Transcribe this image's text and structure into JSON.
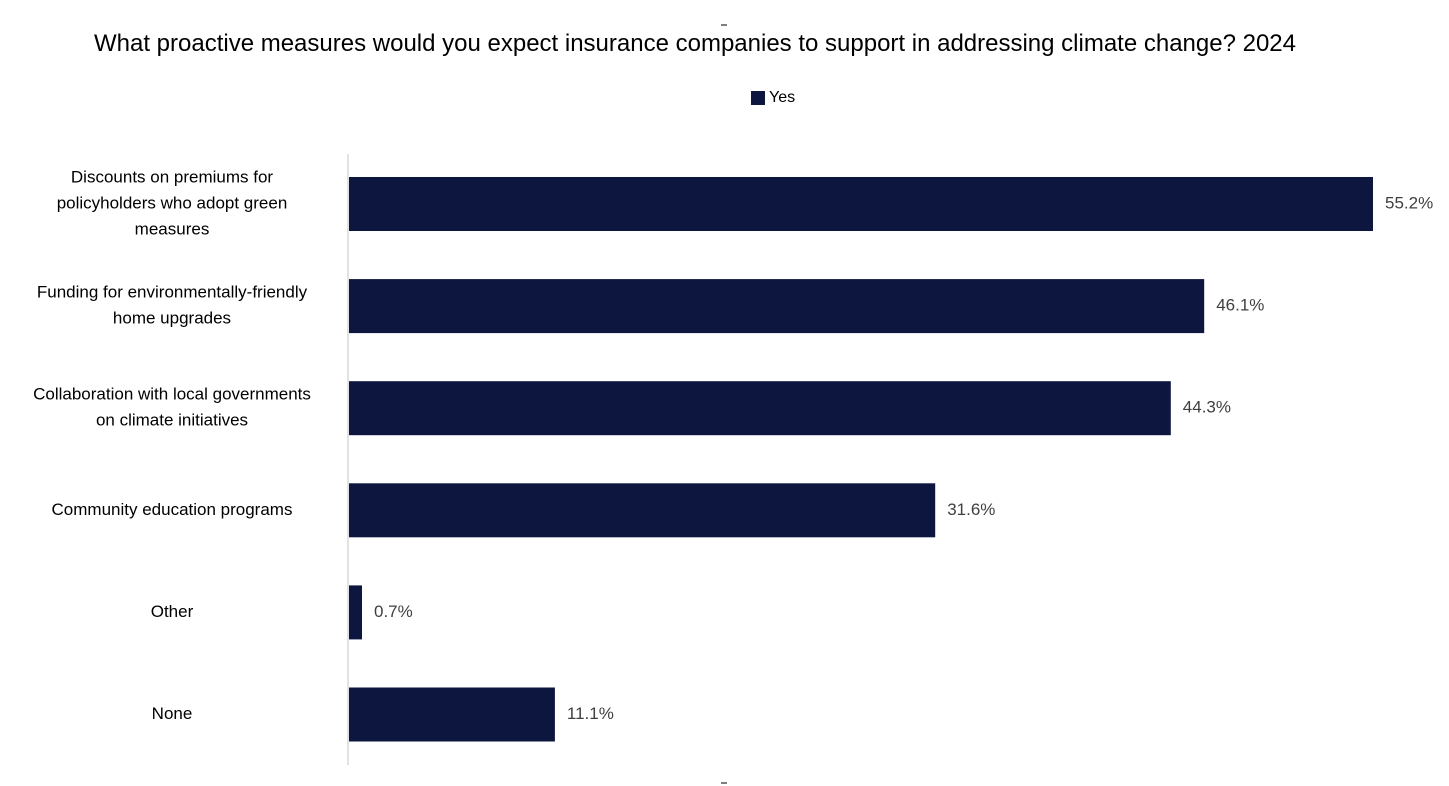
{
  "chart_data": {
    "type": "bar",
    "orientation": "horizontal",
    "title": "What proactive measures would you expect insurance companies to support in addressing climate change? 2024",
    "xlabel": "",
    "ylabel": "",
    "xlim": [
      0,
      55.2
    ],
    "grid": false,
    "legend_position": "top",
    "categories": [
      [
        "Discounts on premiums for",
        "policyholders who adopt green",
        "measures"
      ],
      [
        "Funding for environmentally-friendly",
        "home upgrades"
      ],
      [
        "Collaboration with local governments",
        "on climate initiatives"
      ],
      [
        "Community education programs"
      ],
      [
        "Other"
      ],
      [
        "None"
      ]
    ],
    "series": [
      {
        "name": "Yes",
        "color": "#0d163f",
        "values": [
          55.2,
          46.1,
          44.3,
          31.6,
          0.7,
          11.1
        ],
        "labels": [
          "55.2%",
          "46.1%",
          "44.3%",
          "31.6%",
          "0.7%",
          "11.1%"
        ]
      }
    ]
  }
}
